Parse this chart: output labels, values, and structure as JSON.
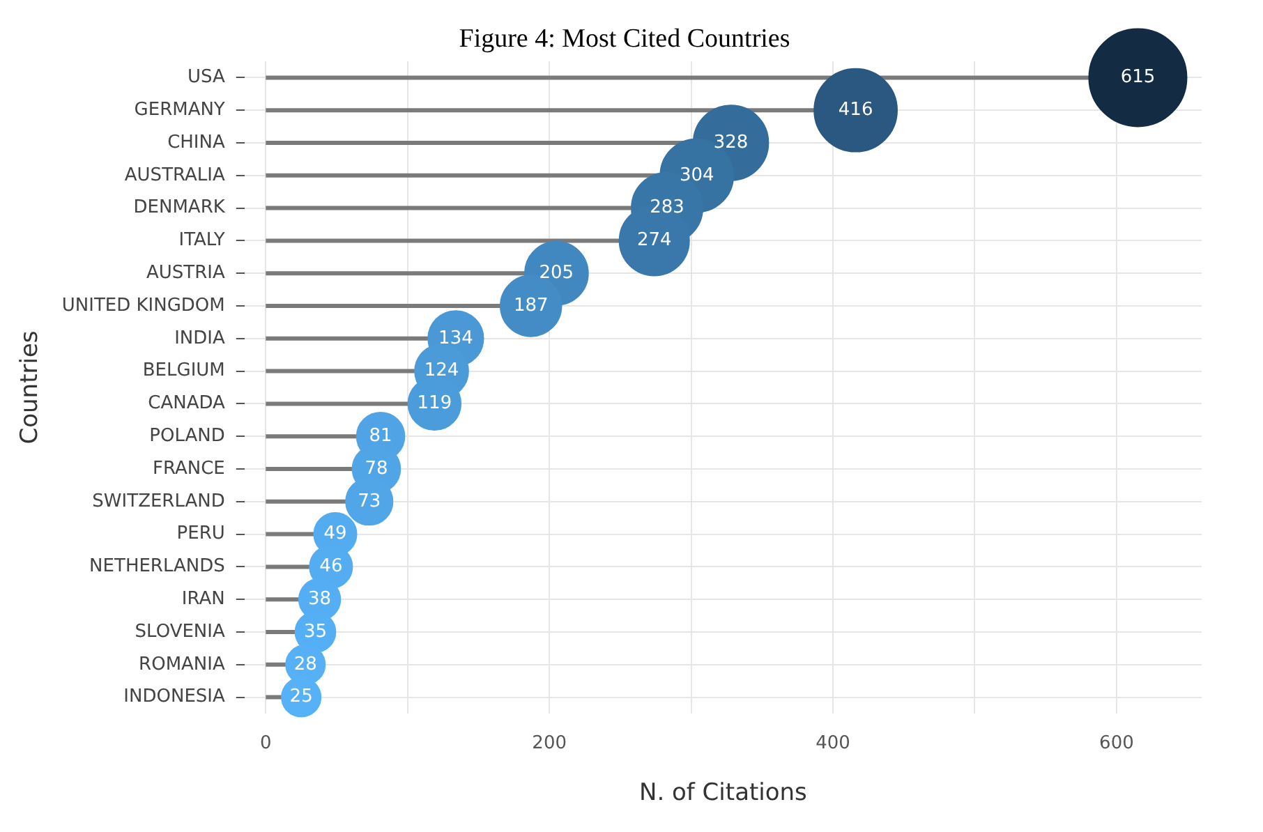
{
  "chart_data": {
    "type": "lollipop",
    "orientation": "horizontal",
    "title": "Figure 4: Most Cited Countries",
    "xlabel": "N. of Citations",
    "ylabel": "Countries",
    "categories": [
      "USA",
      "GERMANY",
      "CHINA",
      "AUSTRALIA",
      "DENMARK",
      "ITALY",
      "AUSTRIA",
      "UNITED KINGDOM",
      "INDIA",
      "BELGIUM",
      "CANADA",
      "POLAND",
      "FRANCE",
      "SWITZERLAND",
      "PERU",
      "NETHERLANDS",
      "IRAN",
      "SLOVENIA",
      "ROMANIA",
      "INDONESIA"
    ],
    "values": [
      615,
      416,
      328,
      304,
      283,
      274,
      205,
      187,
      134,
      124,
      119,
      81,
      78,
      73,
      49,
      46,
      38,
      35,
      28,
      25
    ],
    "sizes": [
      1,
      0.72,
      0.59,
      0.56,
      0.53,
      0.51,
      0.42,
      0.39,
      0.32,
      0.3,
      0.29,
      0.24,
      0.24,
      0.23,
      0.19,
      0.19,
      0.18,
      0.17,
      0.16,
      0.16
    ],
    "color": "#7a7a7a",
    "colors": [
      "#132b43",
      "#2a5880",
      "#346c9b",
      "#3672a2",
      "#3976a8",
      "#3a78ab",
      "#4288c0",
      "#448cc6",
      "#4a98d6",
      "#4b9bd9",
      "#4b9cda",
      "#50a4e6",
      "#50a5e7",
      "#51a6e8",
      "#53acf0",
      "#54acf1",
      "#55aef3",
      "#55aff4",
      "#56b0f6",
      "#56b1f7"
    ],
    "xlim": [
      -15,
      660
    ],
    "xticks": [
      0,
      {
        "value": 100,
        "label": null
      },
      200,
      {
        "value": 300,
        "label": null
      },
      400,
      {
        "value": 500,
        "label": null
      },
      600
    ],
    "grid": true,
    "data_labels": true
  }
}
